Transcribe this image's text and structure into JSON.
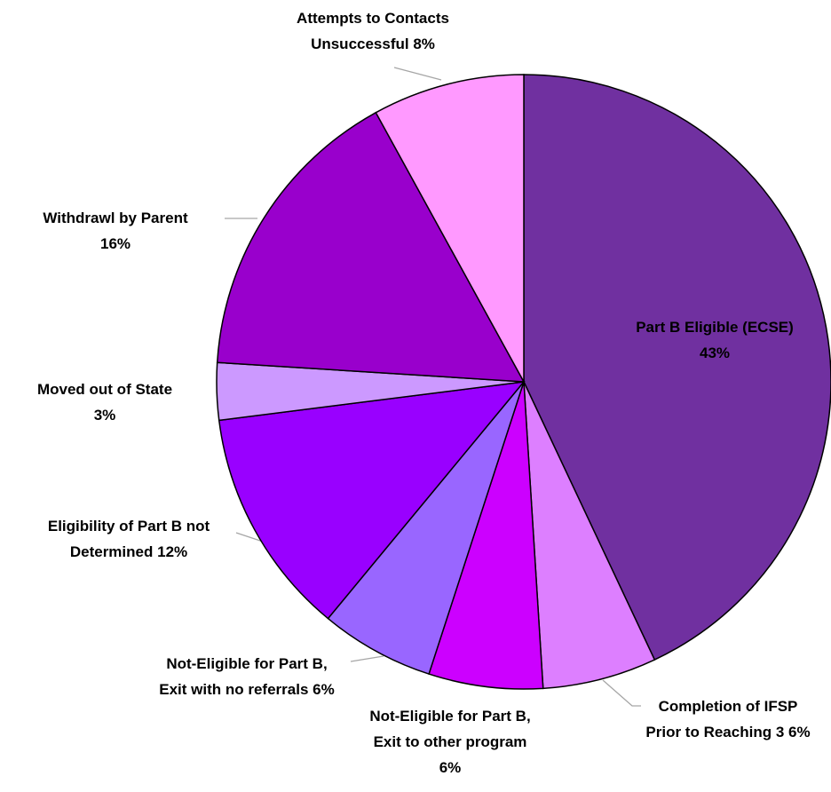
{
  "chart_data": {
    "type": "pie",
    "categories": [
      "Part B Eligible (ECSE)",
      "Completion of IFSP Prior to Reaching 3",
      "Not-Eligible for Part B, Exit to other program",
      "Not-Eligible for Part B, Exit with no referrals",
      "Eligibility of Part B not Determined",
      "Moved out of State",
      "Withdrawl by Parent",
      "Attempts to Contacts Unsuccessful"
    ],
    "values": [
      43,
      6,
      6,
      6,
      12,
      3,
      16,
      8
    ],
    "value_labels": [
      "43%",
      "6%",
      "6%",
      "6%",
      "12%",
      "3%",
      "16%",
      "8%"
    ],
    "colors": [
      "#7030a0",
      "#dd7fff",
      "#cc00ff",
      "#9966ff",
      "#9900ff",
      "#cc99ff",
      "#9900cc",
      "#ff99ff"
    ]
  }
}
